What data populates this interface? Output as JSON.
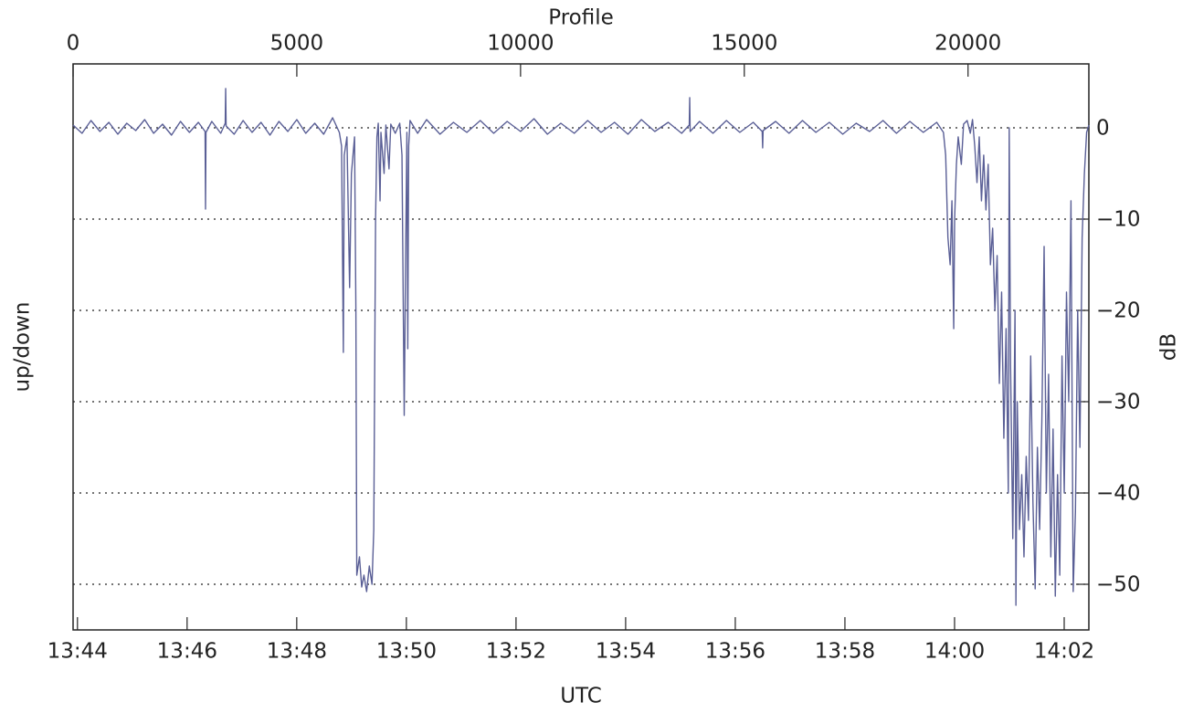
{
  "chart_data": {
    "type": "line",
    "xlabel": "Profile",
    "xlim": [
      0,
      22700
    ],
    "xticks": [
      0,
      5000,
      10000,
      15000,
      20000
    ],
    "time_axis": {
      "label": "UTC",
      "lim": [
        -0.08,
        18.45
      ],
      "ticks": [
        {
          "value": 0,
          "label": "13:44"
        },
        {
          "value": 2,
          "label": "13:46"
        },
        {
          "value": 4,
          "label": "13:48"
        },
        {
          "value": 6,
          "label": "13:50"
        },
        {
          "value": 8,
          "label": "13:52"
        },
        {
          "value": 10,
          "label": "13:54"
        },
        {
          "value": 12,
          "label": "13:56"
        },
        {
          "value": 14,
          "label": "13:58"
        },
        {
          "value": 16,
          "label": "14:00"
        },
        {
          "value": 18,
          "label": "14:02"
        }
      ]
    },
    "ylabel": "up/down",
    "y2label": "dB",
    "y2lim": [
      -55,
      7
    ],
    "y2ticks": [
      0,
      {
        "value": -10,
        "label": "−10"
      },
      {
        "value": -20,
        "label": "−20"
      },
      {
        "value": -30,
        "label": "−30"
      },
      {
        "value": -40,
        "label": "−40"
      },
      {
        "value": -50,
        "label": "−50"
      }
    ],
    "grid": true,
    "x": [
      0,
      200,
      400,
      600,
      800,
      1000,
      1200,
      1400,
      1600,
      1800,
      2000,
      2200,
      2400,
      2600,
      2800,
      2950,
      2960,
      2970,
      3100,
      3300,
      3400,
      3410,
      3420,
      3600,
      3800,
      4000,
      4200,
      4400,
      4600,
      4800,
      5000,
      5200,
      5400,
      5600,
      5800,
      5950,
      6000,
      6040,
      6060,
      6120,
      6180,
      6220,
      6290,
      6320,
      6340,
      6400,
      6450,
      6500,
      6560,
      6620,
      6680,
      6720,
      6760,
      6790,
      6820,
      6860,
      6880,
      6950,
      6990,
      7060,
      7100,
      7200,
      7300,
      7350,
      7400,
      7430,
      7460,
      7480,
      7500,
      7530,
      7700,
      7900,
      8200,
      8500,
      8800,
      9100,
      9400,
      9700,
      10000,
      10300,
      10600,
      10900,
      11200,
      11500,
      11800,
      12100,
      12400,
      12700,
      13000,
      13300,
      13600,
      13770,
      13780,
      13790,
      14000,
      14300,
      14600,
      14900,
      15200,
      15400,
      15410,
      15420,
      15700,
      16000,
      16300,
      16600,
      16900,
      17200,
      17500,
      17800,
      18100,
      18400,
      18700,
      19000,
      19300,
      19450,
      19500,
      19550,
      19600,
      19640,
      19680,
      19700,
      19740,
      19780,
      19850,
      19900,
      19980,
      20050,
      20100,
      20150,
      20200,
      20250,
      20300,
      20350,
      20400,
      20450,
      20500,
      20550,
      20600,
      20650,
      20700,
      20750,
      20800,
      20850,
      20900,
      20920,
      20950,
      21000,
      21050,
      21070,
      21100,
      21150,
      21200,
      21250,
      21300,
      21350,
      21400,
      21450,
      21500,
      21550,
      21600,
      21650,
      21700,
      21750,
      21800,
      21850,
      21900,
      21950,
      22000,
      22050,
      22100,
      22150,
      22200,
      22250,
      22300,
      22350,
      22400,
      22450,
      22500,
      22550,
      22600,
      22650,
      22700
    ],
    "series": [
      {
        "color": "#5a5f96",
        "axis": "y2",
        "values": [
          0.3,
          -0.6,
          0.8,
          -0.4,
          0.6,
          -0.7,
          0.5,
          -0.3,
          0.9,
          -0.6,
          0.4,
          -0.8,
          0.7,
          -0.5,
          0.6,
          -0.4,
          -8.9,
          -0.5,
          0.7,
          -0.6,
          0.5,
          4.3,
          0.2,
          -0.7,
          0.8,
          -0.5,
          0.6,
          -0.8,
          0.7,
          -0.4,
          0.9,
          -0.6,
          0.5,
          -0.7,
          1.1,
          -0.5,
          -2,
          -24.6,
          -3,
          -1,
          -17.5,
          -5,
          -1,
          -20,
          -49,
          -47,
          -50.3,
          -49,
          -50.8,
          -48,
          -50,
          -44,
          -10,
          -1,
          0.5,
          -8,
          -0.5,
          -5,
          0.3,
          -4.5,
          0.4,
          -0.6,
          0.5,
          -3,
          -31.5,
          -15,
          -0.5,
          -24.2,
          -2,
          0.8,
          -0.6,
          0.9,
          -0.7,
          0.6,
          -0.5,
          0.8,
          -0.6,
          0.7,
          -0.4,
          1,
          -0.7,
          0.5,
          -0.6,
          0.8,
          -0.5,
          0.6,
          -0.7,
          0.9,
          -0.4,
          0.6,
          -0.6,
          0.3,
          3.3,
          -0.4,
          0.7,
          -0.6,
          0.8,
          -0.5,
          0.6,
          -0.4,
          -2.2,
          -0.3,
          0.7,
          -0.6,
          0.8,
          -0.5,
          0.6,
          -0.7,
          0.5,
          -0.4,
          0.8,
          -0.6,
          0.7,
          -0.5,
          0.6,
          -0.5,
          -3,
          -12,
          -15,
          -8,
          -22,
          -10,
          -4,
          -1,
          -4,
          0.4,
          0.8,
          -0.6,
          0.9,
          -2,
          -6,
          -1,
          -8,
          -3,
          -9,
          -4,
          -15,
          -11,
          -20,
          -14,
          -28,
          -18,
          -34,
          -22,
          -40,
          0,
          -26,
          -45,
          -20,
          -52.3,
          -30,
          -44,
          -38,
          -47,
          -36,
          -43,
          -25,
          -41,
          -50.5,
          -35,
          -44,
          -32,
          -13,
          -40,
          -27,
          -47,
          -33,
          -51.3,
          -38,
          -49,
          -25,
          -40,
          -18,
          -30,
          -8,
          -50.8,
          -42,
          -20,
          -35,
          -12,
          -5,
          -0.5,
          0.3
        ]
      }
    ]
  }
}
